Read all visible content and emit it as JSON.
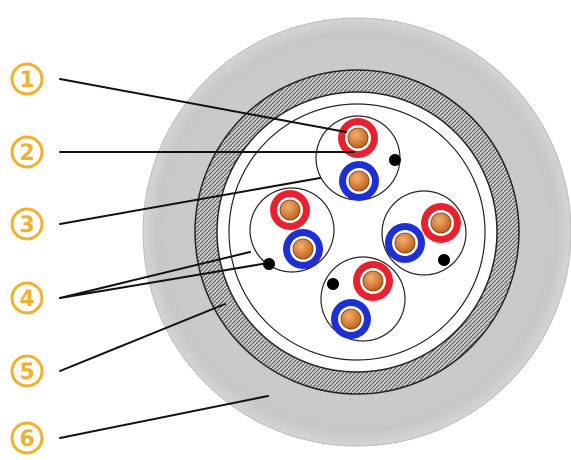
{
  "callouts": [
    {
      "id": "1",
      "label": "1"
    },
    {
      "id": "2",
      "label": "2"
    },
    {
      "id": "3",
      "label": "3"
    },
    {
      "id": "4",
      "label": "4"
    },
    {
      "id": "5",
      "label": "5"
    },
    {
      "id": "6",
      "label": "6"
    }
  ],
  "colors": {
    "callout": "#f0b030",
    "outer_jacket": "#cfcfcf",
    "shield_braid": "#9a9a9a",
    "insulation_red": "#e8212e",
    "insulation_blue": "#1f2fd6",
    "copper": "#d97b2c",
    "filler": "#000000"
  }
}
